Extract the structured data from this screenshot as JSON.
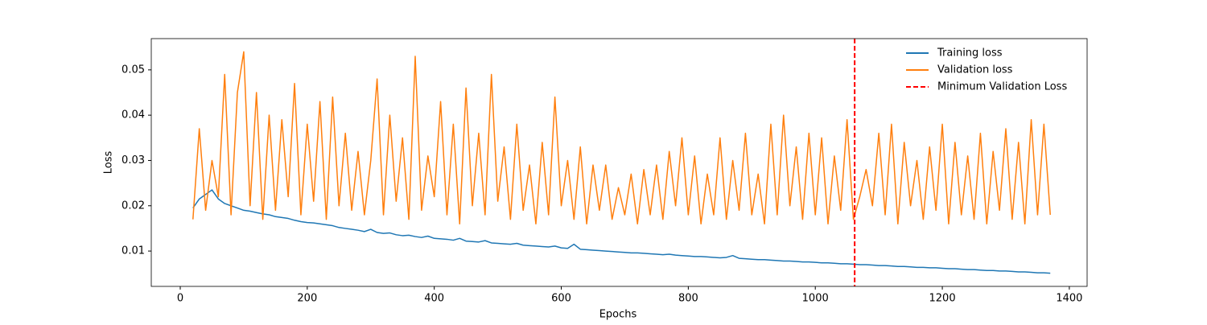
{
  "chart_data": {
    "type": "line",
    "xlabel": "Epochs",
    "ylabel": "Loss",
    "x": [
      20,
      30,
      40,
      50,
      60,
      70,
      80,
      90,
      100,
      110,
      120,
      130,
      140,
      150,
      160,
      170,
      180,
      190,
      200,
      210,
      220,
      230,
      240,
      250,
      260,
      270,
      280,
      290,
      300,
      310,
      320,
      330,
      340,
      350,
      360,
      370,
      380,
      390,
      400,
      410,
      420,
      430,
      440,
      450,
      460,
      470,
      480,
      490,
      500,
      510,
      520,
      530,
      540,
      550,
      560,
      570,
      580,
      590,
      600,
      610,
      620,
      630,
      640,
      650,
      660,
      670,
      680,
      690,
      700,
      710,
      720,
      730,
      740,
      750,
      760,
      770,
      780,
      790,
      800,
      810,
      820,
      830,
      840,
      850,
      860,
      870,
      880,
      890,
      900,
      910,
      920,
      930,
      940,
      950,
      960,
      970,
      980,
      990,
      1000,
      1010,
      1020,
      1030,
      1040,
      1050,
      1060,
      1070,
      1080,
      1090,
      1100,
      1110,
      1120,
      1130,
      1140,
      1150,
      1160,
      1170,
      1180,
      1190,
      1200,
      1210,
      1220,
      1230,
      1240,
      1250,
      1260,
      1270,
      1280,
      1290,
      1300,
      1310,
      1320,
      1330,
      1340,
      1350,
      1360,
      1370
    ],
    "series": [
      {
        "name": "Training loss",
        "color": "#1f77b4",
        "values": [
          0.0195,
          0.0215,
          0.0225,
          0.0235,
          0.0215,
          0.0205,
          0.02,
          0.0195,
          0.019,
          0.0188,
          0.0185,
          0.0182,
          0.018,
          0.0176,
          0.0174,
          0.0172,
          0.0168,
          0.0165,
          0.0163,
          0.0162,
          0.016,
          0.0158,
          0.0156,
          0.0152,
          0.015,
          0.0148,
          0.0146,
          0.0143,
          0.0148,
          0.0141,
          0.0139,
          0.014,
          0.0136,
          0.0134,
          0.0135,
          0.0132,
          0.013,
          0.0133,
          0.0128,
          0.0127,
          0.0126,
          0.0124,
          0.0128,
          0.0122,
          0.0121,
          0.012,
          0.0123,
          0.0118,
          0.0117,
          0.0116,
          0.0115,
          0.0117,
          0.0113,
          0.0112,
          0.0111,
          0.011,
          0.0109,
          0.0111,
          0.0107,
          0.0106,
          0.0115,
          0.0104,
          0.0103,
          0.0102,
          0.0101,
          0.01,
          0.0099,
          0.0098,
          0.0097,
          0.0096,
          0.0096,
          0.0095,
          0.0094,
          0.0093,
          0.0092,
          0.0093,
          0.0091,
          0.009,
          0.0089,
          0.0088,
          0.0088,
          0.0087,
          0.0086,
          0.0085,
          0.0086,
          0.009,
          0.0084,
          0.0083,
          0.0082,
          0.0081,
          0.0081,
          0.008,
          0.0079,
          0.0078,
          0.0078,
          0.0077,
          0.0076,
          0.0076,
          0.0075,
          0.0074,
          0.0074,
          0.0073,
          0.0072,
          0.0072,
          0.0071,
          0.007,
          0.007,
          0.0069,
          0.0068,
          0.0068,
          0.0067,
          0.0066,
          0.0066,
          0.0065,
          0.0064,
          0.0064,
          0.0063,
          0.0063,
          0.0062,
          0.0061,
          0.0061,
          0.006,
          0.0059,
          0.0059,
          0.0058,
          0.0057,
          0.0057,
          0.0056,
          0.0056,
          0.0055,
          0.0054,
          0.0054,
          0.0053,
          0.0052,
          0.0052,
          0.0051
        ]
      },
      {
        "name": "Validation loss",
        "color": "#ff7f0e",
        "values": [
          0.017,
          0.037,
          0.019,
          0.03,
          0.022,
          0.049,
          0.018,
          0.045,
          0.054,
          0.02,
          0.045,
          0.017,
          0.04,
          0.019,
          0.039,
          0.022,
          0.047,
          0.018,
          0.038,
          0.021,
          0.043,
          0.017,
          0.044,
          0.02,
          0.036,
          0.019,
          0.032,
          0.018,
          0.03,
          0.048,
          0.018,
          0.04,
          0.021,
          0.035,
          0.017,
          0.053,
          0.019,
          0.031,
          0.022,
          0.043,
          0.018,
          0.038,
          0.016,
          0.046,
          0.02,
          0.036,
          0.018,
          0.049,
          0.021,
          0.033,
          0.017,
          0.038,
          0.019,
          0.029,
          0.016,
          0.034,
          0.018,
          0.044,
          0.02,
          0.03,
          0.017,
          0.033,
          0.016,
          0.029,
          0.019,
          0.029,
          0.017,
          0.024,
          0.018,
          0.027,
          0.016,
          0.028,
          0.018,
          0.029,
          0.017,
          0.032,
          0.02,
          0.035,
          0.018,
          0.031,
          0.016,
          0.027,
          0.018,
          0.035,
          0.017,
          0.03,
          0.019,
          0.036,
          0.018,
          0.027,
          0.016,
          0.038,
          0.018,
          0.04,
          0.02,
          0.033,
          0.017,
          0.036,
          0.018,
          0.035,
          0.016,
          0.031,
          0.019,
          0.039,
          0.017,
          0.022,
          0.028,
          0.02,
          0.036,
          0.018,
          0.038,
          0.016,
          0.034,
          0.02,
          0.03,
          0.017,
          0.033,
          0.019,
          0.038,
          0.016,
          0.034,
          0.018,
          0.031,
          0.017,
          0.036,
          0.016,
          0.032,
          0.019,
          0.037,
          0.017,
          0.034,
          0.016,
          0.039,
          0.018,
          0.038,
          0.018
        ]
      }
    ],
    "vlines": [
      {
        "name": "Minimum Validation Loss",
        "x": 1062,
        "color": "red",
        "dashed": true
      }
    ],
    "xlim": [
      -45.6,
      1428
    ],
    "ylim": [
      0.0022,
      0.0569
    ],
    "xticks": [
      0,
      200,
      400,
      600,
      800,
      1000,
      1200,
      1400
    ],
    "yticks": [
      0.01,
      0.02,
      0.03,
      0.04,
      0.05
    ],
    "legend": "upper right"
  }
}
